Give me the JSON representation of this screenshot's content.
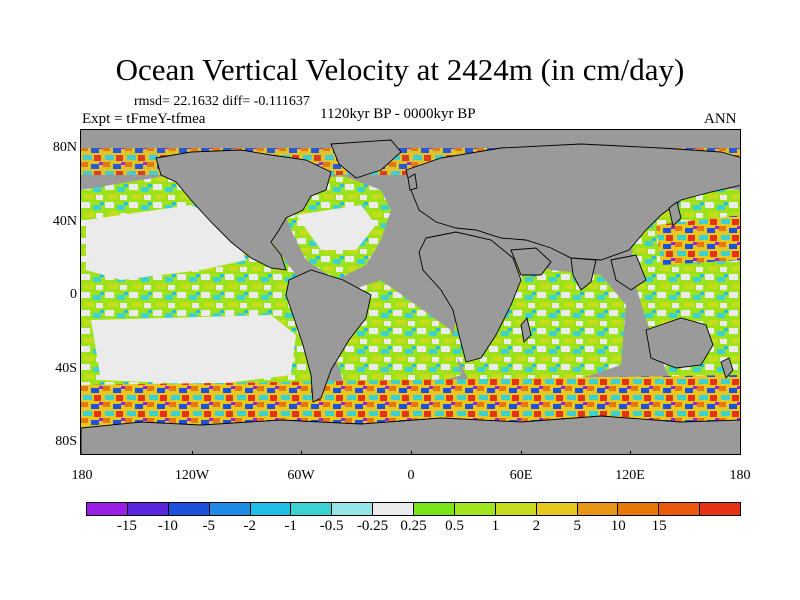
{
  "title": "Ocean Vertical Velocity at 2424m (in cm/day)",
  "stats": "rmsd= 22.1632 diff= -0.111637",
  "experiment": "Expt = tFmeY-tfmea",
  "period": "1120kyr BP - 0000kyr BP",
  "season": "ANN",
  "map": {
    "projection": "cylindrical equidistant",
    "land_color": "#9a9a9a",
    "lat_range": [
      -90,
      90
    ],
    "lon_range": [
      -180,
      180
    ],
    "lat_labels": [
      {
        "text": "80N",
        "value": 80
      },
      {
        "text": "40N",
        "value": 40
      },
      {
        "text": "0",
        "value": 0
      },
      {
        "text": "40S",
        "value": -40
      },
      {
        "text": "80S",
        "value": -80
      }
    ],
    "lon_labels": [
      {
        "text": "180",
        "value": -180
      },
      {
        "text": "120W",
        "value": -120
      },
      {
        "text": "60W",
        "value": -60
      },
      {
        "text": "0",
        "value": 0
      },
      {
        "text": "60E",
        "value": 60
      },
      {
        "text": "120E",
        "value": 120
      },
      {
        "text": "180",
        "value": 180
      }
    ]
  },
  "colorbar": {
    "colors": [
      "#9a1ee6",
      "#5a28dc",
      "#1e50dc",
      "#1e8ce6",
      "#1ebee6",
      "#3cd2d2",
      "#96e6e6",
      "#ebebeb",
      "#78e614",
      "#a0e61e",
      "#c8dc1e",
      "#e6c81e",
      "#e69614",
      "#e6780a",
      "#eb5a0a",
      "#e63214"
    ],
    "labels": [
      "-15",
      "-10",
      "-5",
      "-2",
      "-1",
      "-0.5",
      "-0.25",
      "0.25",
      "0.5",
      "1",
      "2",
      "5",
      "10",
      "15"
    ]
  }
}
